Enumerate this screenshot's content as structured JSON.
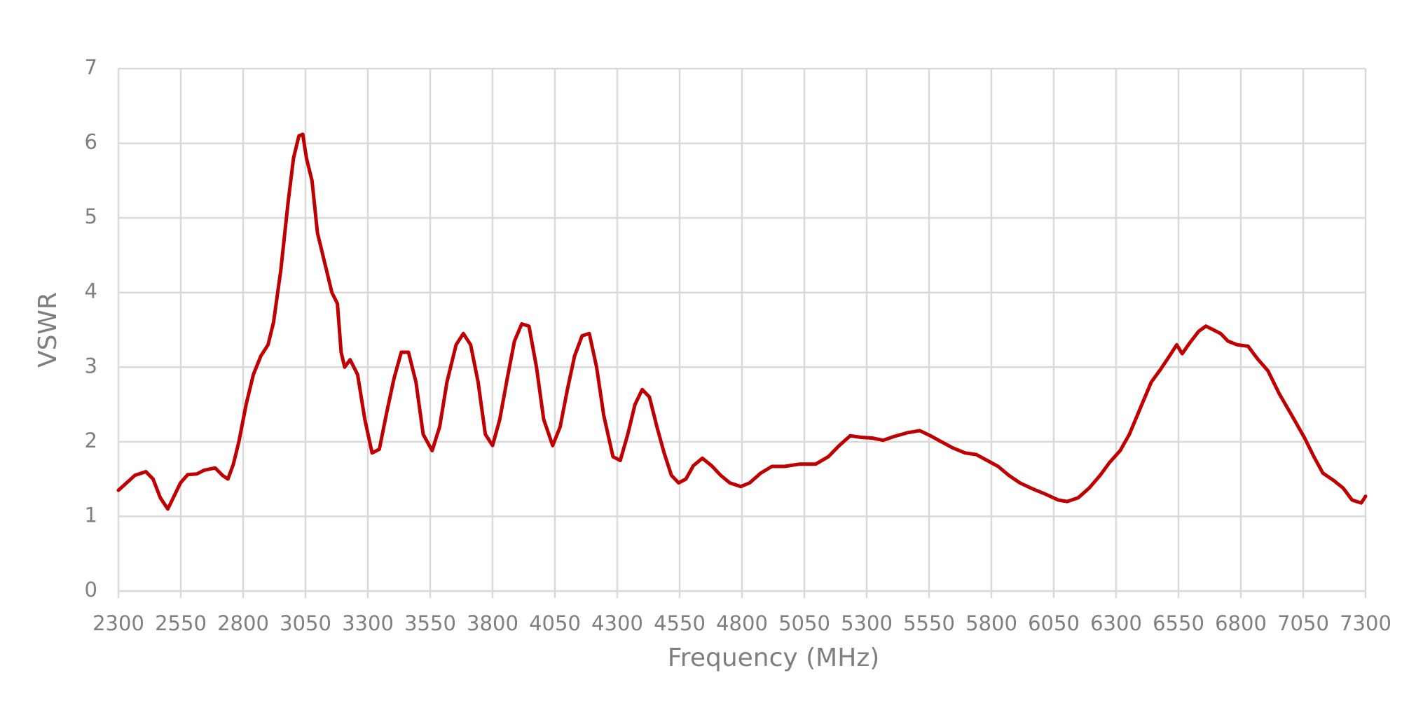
{
  "chart_data": {
    "type": "line",
    "x_label": "Frequency (MHz)",
    "y_label": "VSWR",
    "x": [
      2300,
      2366,
      2410,
      2439,
      2468,
      2498,
      2520,
      2549,
      2578,
      2615,
      2644,
      2688,
      2717,
      2739,
      2761,
      2783,
      2812,
      2841,
      2871,
      2900,
      2922,
      2951,
      2980,
      3002,
      3024,
      3039,
      3054,
      3076,
      3098,
      3127,
      3156,
      3178,
      3193,
      3207,
      3229,
      3259,
      3288,
      3317,
      3346,
      3376,
      3405,
      3434,
      3463,
      3493,
      3522,
      3558,
      3588,
      3617,
      3654,
      3683,
      3712,
      3742,
      3771,
      3800,
      3829,
      3859,
      3888,
      3917,
      3946,
      3976,
      4005,
      4041,
      4071,
      4100,
      4129,
      4159,
      4188,
      4217,
      4246,
      4283,
      4312,
      4342,
      4371,
      4400,
      4429,
      4459,
      4488,
      4517,
      4546,
      4575,
      4605,
      4641,
      4678,
      4715,
      4751,
      4795,
      4831,
      4875,
      4920,
      4971,
      5029,
      5095,
      5146,
      5190,
      5234,
      5278,
      5322,
      5366,
      5409,
      5461,
      5512,
      5556,
      5600,
      5644,
      5695,
      5739,
      5783,
      5827,
      5870,
      5914,
      5958,
      6016,
      6068,
      6104,
      6148,
      6192,
      6236,
      6273,
      6316,
      6353,
      6397,
      6441,
      6478,
      6514,
      6543,
      6565,
      6594,
      6631,
      6660,
      6690,
      6719,
      6748,
      6785,
      6829,
      6865,
      6909,
      6953,
      7005,
      7056,
      7093,
      7129,
      7173,
      7210,
      7246,
      7283,
      7300
    ],
    "series": [
      {
        "name": "VSWR",
        "color": "#c00000",
        "values": [
          1.35,
          1.55,
          1.6,
          1.5,
          1.25,
          1.1,
          1.25,
          1.45,
          1.56,
          1.57,
          1.62,
          1.65,
          1.55,
          1.5,
          1.7,
          2.0,
          2.5,
          2.9,
          3.15,
          3.3,
          3.6,
          4.3,
          5.2,
          5.8,
          6.1,
          6.12,
          5.8,
          5.5,
          4.8,
          4.4,
          4.0,
          3.85,
          3.2,
          3.0,
          3.1,
          2.9,
          2.3,
          1.85,
          1.9,
          2.4,
          2.85,
          3.2,
          3.2,
          2.8,
          2.1,
          1.88,
          2.2,
          2.8,
          3.3,
          3.45,
          3.3,
          2.8,
          2.1,
          1.95,
          2.3,
          2.85,
          3.35,
          3.58,
          3.55,
          3.0,
          2.3,
          1.95,
          2.2,
          2.7,
          3.15,
          3.42,
          3.45,
          3.0,
          2.35,
          1.8,
          1.75,
          2.1,
          2.5,
          2.7,
          2.6,
          2.2,
          1.85,
          1.55,
          1.45,
          1.5,
          1.68,
          1.78,
          1.68,
          1.55,
          1.45,
          1.4,
          1.45,
          1.58,
          1.67,
          1.67,
          1.7,
          1.7,
          1.8,
          1.95,
          2.08,
          2.06,
          2.05,
          2.02,
          2.07,
          2.12,
          2.15,
          2.08,
          2.0,
          1.92,
          1.85,
          1.83,
          1.75,
          1.67,
          1.55,
          1.45,
          1.38,
          1.3,
          1.22,
          1.2,
          1.25,
          1.38,
          1.55,
          1.72,
          1.88,
          2.1,
          2.45,
          2.8,
          2.97,
          3.15,
          3.3,
          3.18,
          3.32,
          3.48,
          3.55,
          3.5,
          3.45,
          3.35,
          3.3,
          3.28,
          3.12,
          2.95,
          2.65,
          2.35,
          2.05,
          1.8,
          1.58,
          1.48,
          1.38,
          1.22,
          1.18,
          1.27
        ]
      }
    ],
    "xlim": [
      2300,
      7300
    ],
    "xticks": [
      2300,
      2550,
      2800,
      3050,
      3300,
      3550,
      3800,
      4050,
      4300,
      4550,
      4800,
      5050,
      5300,
      5550,
      5800,
      6050,
      6300,
      6550,
      6800,
      7050,
      7300
    ],
    "ylim": [
      0,
      7
    ],
    "yticks": [
      0,
      1,
      2,
      3,
      4,
      5,
      6,
      7
    ],
    "grid": true
  }
}
